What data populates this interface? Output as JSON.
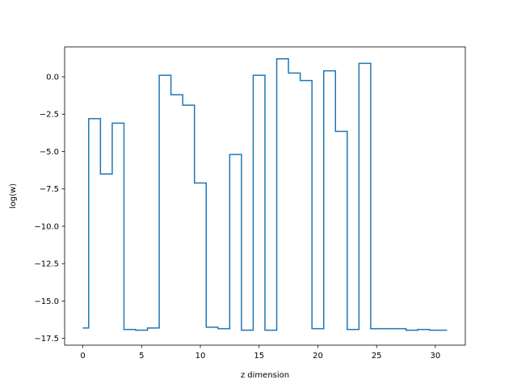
{
  "chart_data": {
    "type": "line",
    "drawstyle": "steps-mid",
    "title": "",
    "xlabel": "z dimension",
    "ylabel": "log(w)",
    "xlim": [
      -1.55,
      32.55
    ],
    "ylim": [
      -17.95,
      2.0
    ],
    "x_ticks": [
      0,
      5,
      10,
      15,
      20,
      25,
      30
    ],
    "x_tick_labels": [
      "0",
      "5",
      "10",
      "15",
      "20",
      "25",
      "30"
    ],
    "y_ticks": [
      -17.5,
      -15.0,
      -12.5,
      -10.0,
      -7.5,
      -5.0,
      -2.5,
      0.0
    ],
    "y_tick_labels": [
      "−17.5",
      "−15.0",
      "−12.5",
      "−10.0",
      "−7.5",
      "−5.0",
      "−2.5",
      "0.0"
    ],
    "grid": false,
    "legend": "none",
    "series": [
      {
        "color": "#1f77b4",
        "x": [
          0,
          1,
          2,
          3,
          4,
          5,
          6,
          7,
          8,
          9,
          10,
          11,
          12,
          13,
          14,
          15,
          16,
          17,
          18,
          19,
          20,
          21,
          22,
          23,
          24,
          25,
          26,
          27,
          28,
          29,
          30,
          31
        ],
        "values": [
          -16.8,
          -2.8,
          -6.5,
          -3.1,
          -16.9,
          -16.95,
          -16.8,
          0.1,
          -1.2,
          -1.9,
          -7.1,
          -16.75,
          -16.85,
          -5.2,
          -16.95,
          0.1,
          -16.95,
          1.2,
          0.25,
          -0.25,
          -16.85,
          0.4,
          -3.65,
          -16.9,
          0.9,
          -16.85,
          -16.85,
          -16.85,
          -16.95,
          -16.9,
          -16.95,
          -16.95
        ]
      }
    ]
  }
}
